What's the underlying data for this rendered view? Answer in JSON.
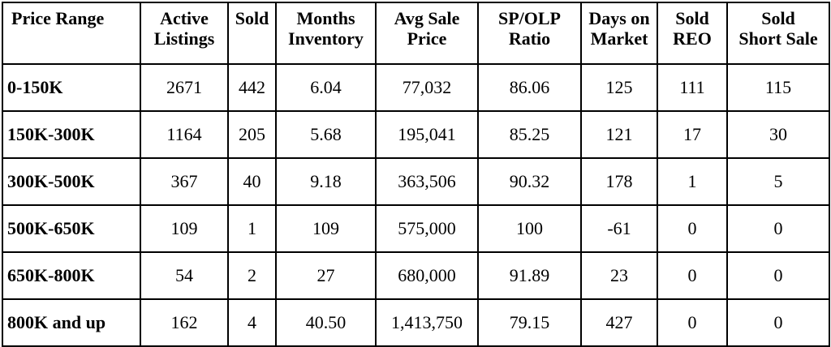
{
  "table": {
    "headers": [
      [
        "Price Range"
      ],
      [
        "Active",
        "Listings"
      ],
      [
        "Sold"
      ],
      [
        "Months",
        "Inventory"
      ],
      [
        "Avg Sale",
        "Price"
      ],
      [
        "SP/OLP",
        "Ratio"
      ],
      [
        "Days on",
        "Market"
      ],
      [
        "Sold",
        "REO"
      ],
      [
        "Sold",
        "Short Sale"
      ]
    ],
    "rows": [
      [
        "0-150K",
        "2671",
        "442",
        "6.04",
        "77,032",
        "86.06",
        "125",
        "111",
        "115"
      ],
      [
        "150K-300K",
        "1164",
        "205",
        "5.68",
        "195,041",
        "85.25",
        "121",
        "17",
        "30"
      ],
      [
        "300K-500K",
        "367",
        "40",
        "9.18",
        "363,506",
        "90.32",
        "178",
        "1",
        "5"
      ],
      [
        "500K-650K",
        "109",
        "1",
        "109",
        "575,000",
        "100",
        "-61",
        "0",
        "0"
      ],
      [
        "650K-800K",
        "54",
        "2",
        "27",
        "680,000",
        "91.89",
        "23",
        "0",
        "0"
      ],
      [
        "800K and up",
        "162",
        "4",
        "40.50",
        "1,413,750",
        "79.15",
        "427",
        "0",
        "0"
      ]
    ]
  }
}
